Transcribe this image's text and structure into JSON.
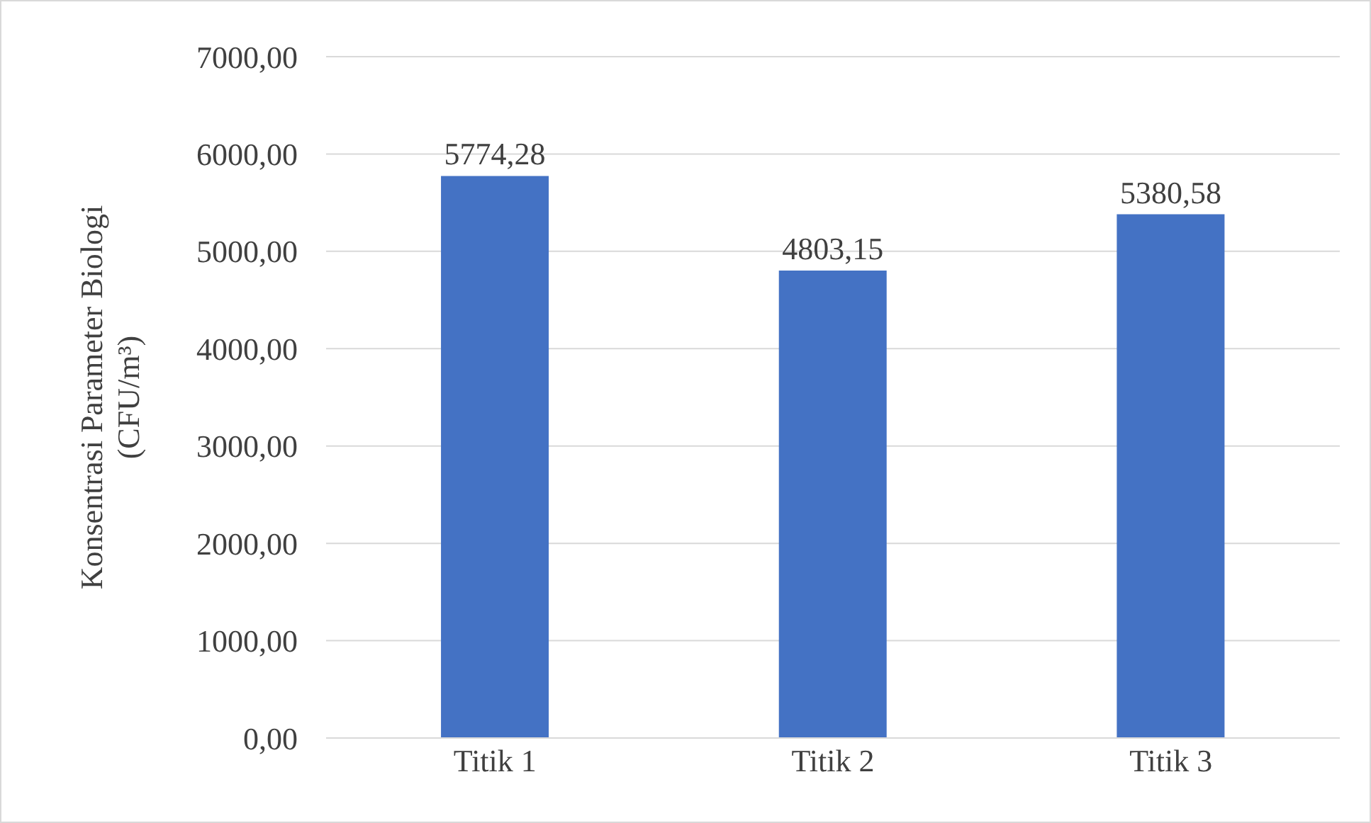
{
  "chart_data": {
    "type": "bar",
    "ylabel": "Konsentrasi Parameter Biologi\n(CFU/m³)",
    "categories": [
      "Titik 1",
      "Titik 2",
      "Titik 3"
    ],
    "values": [
      5774.28,
      4803.15,
      5380.58
    ],
    "value_labels": [
      "5774,28",
      "4803,15",
      "5380,58"
    ],
    "color": "#4472c4",
    "ylim": [
      0,
      7000
    ],
    "yticks": [
      {
        "value": 0,
        "label": "0,00"
      },
      {
        "value": 1000,
        "label": "1000,00"
      },
      {
        "value": 2000,
        "label": "2000,00"
      },
      {
        "value": 3000,
        "label": "3000,00"
      },
      {
        "value": 4000,
        "label": "4000,00"
      },
      {
        "value": 5000,
        "label": "5000,00"
      },
      {
        "value": 6000,
        "label": "6000,00"
      },
      {
        "value": 7000,
        "label": "7000,00"
      }
    ],
    "grid": "y"
  }
}
